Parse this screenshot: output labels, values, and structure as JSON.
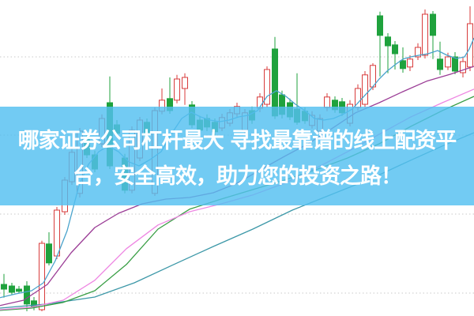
{
  "page": {
    "background": "#ffffff"
  },
  "banner": {
    "line1": "哪家证券公司杠杆最大 寻找最靠谱的线上配资平",
    "line2": "台，安全高效，助力您的投资之路！",
    "bg_color": "#53bff0",
    "text_color": "#ffffff"
  },
  "chart_data": {
    "type": "candlestick",
    "title": "",
    "xlabel": "",
    "ylabel": "",
    "axis_labels_visible": false,
    "grid": "horizontal-dotted",
    "price_axis": {
      "min": 0,
      "max": 100,
      "gridline_values": [
        82,
        57.25,
        32.25,
        7.25
      ]
    },
    "colors": {
      "up": "#d83b3b",
      "up_fill": "#ffffff",
      "down": "#1fa23d",
      "grid": "#c9c9c9",
      "background": "#ffffff"
    },
    "candles": {
      "columns": [
        "x",
        "open",
        "close",
        "high",
        "low"
      ],
      "rows": [
        [
          5,
          10.0,
          8.5,
          13.3,
          5.8
        ],
        [
          15,
          9.5,
          7.5,
          10.5,
          6.8
        ],
        [
          24,
          8.5,
          7.8,
          9.5,
          7.3
        ],
        [
          34,
          9.5,
          3.8,
          11.0,
          1.5
        ],
        [
          43,
          4.8,
          2.8,
          6.0,
          1.8
        ],
        [
          53,
          2.0,
          23.0,
          23.8,
          1.5
        ],
        [
          62,
          22.8,
          16.8,
          26.5,
          16.0
        ],
        [
          72,
          19.0,
          33.5,
          34.5,
          18.0
        ],
        [
          82,
          33.0,
          43.0,
          44.0,
          32.0
        ],
        [
          91,
          42.5,
          51.8,
          53.0,
          41.5
        ],
        [
          101,
          38.8,
          58.5,
          59.5,
          37.5
        ],
        [
          110,
          56.3,
          51.0,
          57.5,
          50.0
        ],
        [
          120,
          51.0,
          46.5,
          52.3,
          45.5
        ],
        [
          129,
          54.5,
          62.5,
          63.8,
          53.5
        ],
        [
          139,
          67.5,
          47.5,
          75.8,
          46.5
        ],
        [
          148,
          60.5,
          57.8,
          62.0,
          56.8
        ],
        [
          158,
          50.0,
          39.8,
          51.3,
          38.8
        ],
        [
          167,
          39.8,
          58.8,
          60.0,
          38.8
        ],
        [
          177,
          50.0,
          62.0,
          63.0,
          49.0
        ],
        [
          186,
          61.3,
          58.0,
          62.5,
          57.0
        ],
        [
          196,
          38.8,
          65.0,
          66.0,
          38.0
        ],
        [
          205,
          64.8,
          68.3,
          72.0,
          63.8
        ],
        [
          215,
          68.8,
          65.0,
          75.5,
          64.0
        ],
        [
          224,
          68.3,
          75.0,
          76.3,
          67.3
        ],
        [
          234,
          72.0,
          75.5,
          76.8,
          66.8
        ],
        [
          243,
          66.8,
          60.5,
          68.0,
          59.5
        ],
        [
          253,
          62.0,
          58.8,
          63.3,
          57.5
        ],
        [
          262,
          62.5,
          59.8,
          63.8,
          58.5
        ],
        [
          272,
          61.3,
          58.3,
          62.5,
          57.0
        ],
        [
          281,
          59.5,
          62.8,
          64.0,
          58.5
        ],
        [
          291,
          61.0,
          64.3,
          65.5,
          60.0
        ],
        [
          300,
          64.0,
          66.3,
          67.5,
          63.0
        ],
        [
          310,
          58.8,
          64.3,
          65.5,
          57.5
        ],
        [
          319,
          65.0,
          62.0,
          66.3,
          60.8
        ],
        [
          329,
          65.8,
          69.3,
          70.5,
          64.5
        ],
        [
          338,
          67.0,
          78.0,
          79.0,
          66.0
        ],
        [
          348,
          84.5,
          63.3,
          88.3,
          62.3
        ],
        [
          357,
          70.0,
          63.8,
          71.3,
          62.5
        ],
        [
          367,
          67.5,
          63.0,
          68.8,
          62.0
        ],
        [
          376,
          65.5,
          61.3,
          76.8,
          60.5
        ],
        [
          386,
          64.8,
          61.8,
          66.0,
          60.8
        ],
        [
          395,
          60.3,
          63.5,
          64.8,
          59.3
        ],
        [
          405,
          58.5,
          62.5,
          63.8,
          57.5
        ],
        [
          414,
          66.0,
          69.3,
          70.5,
          64.8
        ],
        [
          424,
          68.3,
          65.3,
          69.5,
          64.3
        ],
        [
          433,
          67.8,
          64.3,
          69.0,
          63.3
        ],
        [
          443,
          61.0,
          67.0,
          68.3,
          60.0
        ],
        [
          453,
          66.0,
          72.0,
          73.3,
          65.0
        ],
        [
          462,
          67.0,
          76.3,
          77.5,
          66.0
        ],
        [
          472,
          72.5,
          79.3,
          80.0,
          71.5
        ],
        [
          481,
          95.0,
          88.8,
          96.3,
          75.8
        ],
        [
          491,
          88.3,
          85.5,
          89.5,
          76.8
        ],
        [
          500,
          85.8,
          83.0,
          87.0,
          78.0
        ],
        [
          510,
          80.8,
          78.3,
          85.0,
          77.0
        ],
        [
          519,
          78.8,
          81.3,
          82.5,
          77.5
        ],
        [
          529,
          82.0,
          85.0,
          86.3,
          81.0
        ],
        [
          538,
          82.5,
          95.5,
          97.0,
          81.5
        ],
        [
          548,
          95.5,
          88.8,
          96.5,
          81.3
        ],
        [
          557,
          81.3,
          78.0,
          86.8,
          76.3
        ],
        [
          567,
          78.8,
          82.0,
          83.3,
          77.8
        ],
        [
          576,
          82.0,
          77.5,
          83.5,
          76.5
        ],
        [
          586,
          77.0,
          80.5,
          81.8,
          75.5
        ],
        [
          595,
          78.8,
          92.5,
          98.0,
          77.5
        ]
      ]
    },
    "moving_averages": [
      {
        "name": "ma-slow-teal",
        "color": "#3d98a8",
        "points": [
          [
            0,
            2.5
          ],
          [
            60,
            3.8
          ],
          [
            120,
            6.0
          ],
          [
            170,
            10.5
          ],
          [
            220,
            16.3
          ],
          [
            270,
            22.0
          ],
          [
            320,
            27.5
          ],
          [
            370,
            33.5
          ],
          [
            420,
            38.5
          ],
          [
            470,
            43.5
          ],
          [
            520,
            49.3
          ],
          [
            560,
            53.8
          ],
          [
            600,
            58.0
          ]
        ]
      },
      {
        "name": "ma-green",
        "color": "#389e44",
        "points": [
          [
            0,
            1.8
          ],
          [
            40,
            2.5
          ],
          [
            80,
            4.3
          ],
          [
            120,
            8.0
          ],
          [
            160,
            16.3
          ],
          [
            200,
            27.5
          ],
          [
            240,
            33.8
          ],
          [
            280,
            37.0
          ],
          [
            320,
            40.0
          ],
          [
            360,
            43.0
          ],
          [
            400,
            46.3
          ],
          [
            440,
            50.0
          ],
          [
            480,
            54.5
          ],
          [
            520,
            60.0
          ],
          [
            560,
            65.0
          ],
          [
            600,
            69.5
          ]
        ]
      },
      {
        "name": "ma-magenta",
        "color": "#ee86e2",
        "points": [
          [
            0,
            2.0
          ],
          [
            40,
            2.8
          ],
          [
            80,
            5.0
          ],
          [
            120,
            11.3
          ],
          [
            160,
            21.3
          ],
          [
            200,
            28.8
          ],
          [
            240,
            33.0
          ],
          [
            280,
            35.5
          ],
          [
            320,
            38.3
          ],
          [
            360,
            42.0
          ],
          [
            400,
            46.8
          ],
          [
            440,
            52.0
          ],
          [
            480,
            57.5
          ],
          [
            520,
            63.0
          ],
          [
            560,
            67.5
          ],
          [
            600,
            71.8
          ]
        ]
      },
      {
        "name": "ma-purple",
        "color": "#9b3d96",
        "points": [
          [
            0,
            3.3
          ],
          [
            30,
            5.0
          ],
          [
            60,
            10.0
          ],
          [
            90,
            20.0
          ],
          [
            120,
            28.0
          ],
          [
            150,
            32.5
          ],
          [
            180,
            35.5
          ],
          [
            210,
            37.0
          ],
          [
            240,
            37.5
          ],
          [
            270,
            39.0
          ],
          [
            300,
            42.0
          ],
          [
            330,
            46.3
          ],
          [
            360,
            50.5
          ],
          [
            390,
            54.5
          ],
          [
            420,
            59.3
          ],
          [
            450,
            64.3
          ],
          [
            480,
            67.5
          ],
          [
            510,
            71.0
          ],
          [
            540,
            74.3
          ],
          [
            570,
            76.5
          ],
          [
            600,
            79.0
          ]
        ]
      },
      {
        "name": "ma-fast-blue",
        "color": "#4aa3cc",
        "points": [
          [
            0,
            5.8
          ],
          [
            20,
            7.0
          ],
          [
            40,
            8.0
          ],
          [
            55,
            10.5
          ],
          [
            70,
            17.5
          ],
          [
            85,
            27.0
          ],
          [
            100,
            41.3
          ],
          [
            112,
            48.0
          ],
          [
            125,
            52.0
          ],
          [
            137,
            53.8
          ],
          [
            150,
            52.0
          ],
          [
            163,
            48.8
          ],
          [
            176,
            47.5
          ],
          [
            190,
            49.5
          ],
          [
            204,
            52.0
          ],
          [
            218,
            58.0
          ],
          [
            230,
            62.5
          ],
          [
            242,
            64.5
          ],
          [
            254,
            63.0
          ],
          [
            266,
            62.0
          ],
          [
            278,
            61.5
          ],
          [
            290,
            62.0
          ],
          [
            302,
            63.0
          ],
          [
            314,
            63.5
          ],
          [
            326,
            65.0
          ],
          [
            338,
            69.5
          ],
          [
            350,
            71.3
          ],
          [
            362,
            69.5
          ],
          [
            374,
            67.0
          ],
          [
            386,
            65.0
          ],
          [
            398,
            62.5
          ],
          [
            410,
            62.0
          ],
          [
            422,
            62.5
          ],
          [
            434,
            63.8
          ],
          [
            446,
            65.5
          ],
          [
            458,
            68.8
          ],
          [
            470,
            72.0
          ],
          [
            480,
            75.0
          ],
          [
            490,
            77.5
          ],
          [
            500,
            79.5
          ],
          [
            510,
            81.3
          ],
          [
            520,
            82.0
          ],
          [
            530,
            82.5
          ],
          [
            542,
            83.0
          ],
          [
            554,
            84.0
          ],
          [
            566,
            82.5
          ],
          [
            578,
            81.5
          ],
          [
            588,
            82.0
          ],
          [
            594,
            84.5
          ],
          [
            600,
            88.0
          ]
        ]
      }
    ]
  }
}
